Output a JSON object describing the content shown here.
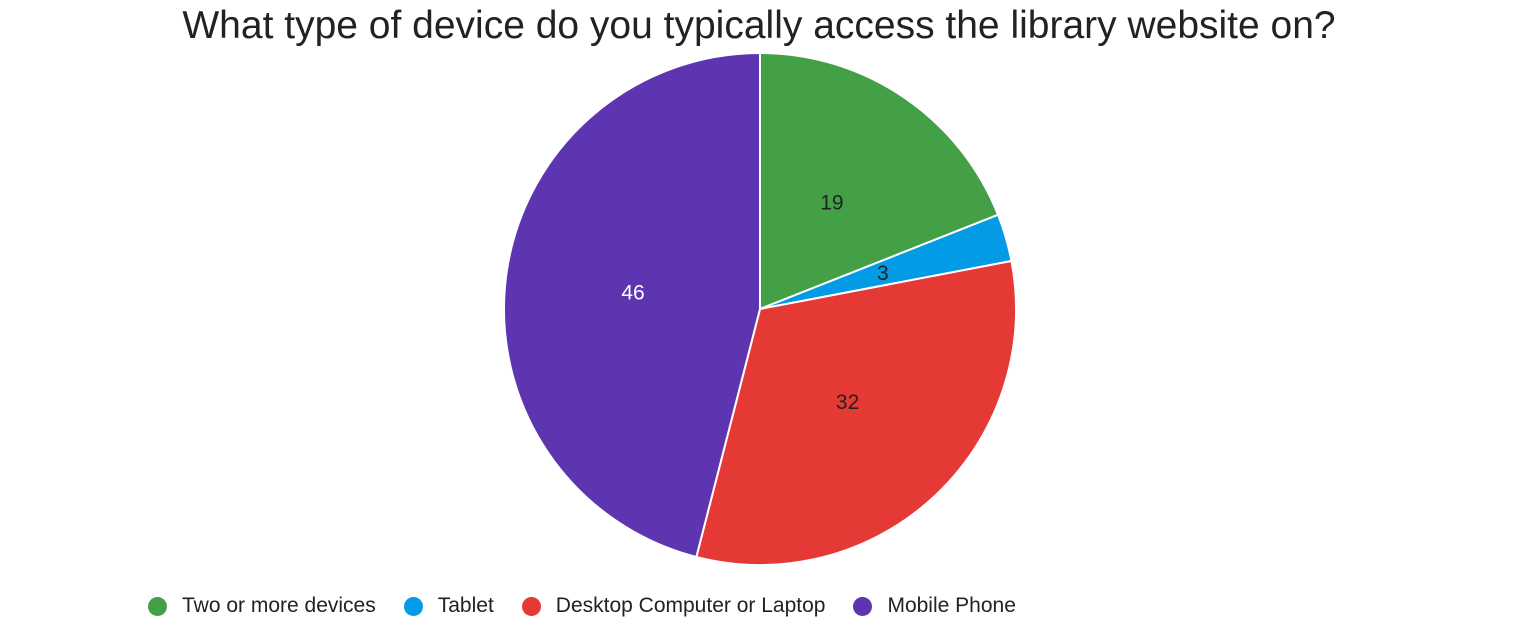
{
  "chart_data": {
    "type": "pie",
    "title": "What type of device do you typically access the library website on?",
    "slices": [
      {
        "label": "Two or more devices",
        "value": 19,
        "display": "19",
        "color": "#43a047"
      },
      {
        "label": "Tablet",
        "value": 3,
        "display": "3",
        "color": "#039be5"
      },
      {
        "label": "Desktop Computer or Laptop",
        "value": 32,
        "display": "32",
        "color": "#e53935"
      },
      {
        "label": "Mobile Phone",
        "value": 46,
        "display": "46",
        "color": "#5e35b1"
      }
    ],
    "legend_position": "bottom-left"
  }
}
